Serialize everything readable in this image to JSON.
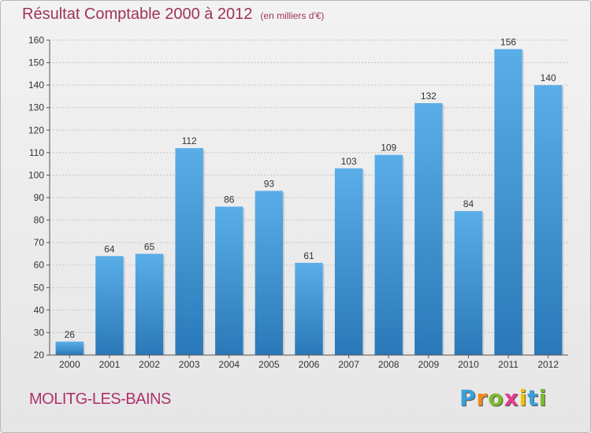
{
  "chart_data": {
    "type": "bar",
    "title": "Résultat Comptable 2000 à 2012",
    "subtitle": "(en milliers d'€)",
    "categories": [
      "2000",
      "2001",
      "2002",
      "2003",
      "2004",
      "2005",
      "2006",
      "2007",
      "2008",
      "2009",
      "2010",
      "2011",
      "2012"
    ],
    "values": [
      26,
      64,
      65,
      112,
      86,
      93,
      61,
      103,
      109,
      132,
      84,
      156,
      140
    ],
    "ylim": [
      20,
      160
    ],
    "yticks": [
      20,
      30,
      40,
      50,
      60,
      70,
      80,
      90,
      100,
      110,
      120,
      130,
      140,
      150,
      160
    ],
    "grid": true,
    "bar_color": "#3d8fd4"
  },
  "town": "MOLITG-LES-BAINS",
  "logo": {
    "letters": [
      "P",
      "r",
      "o",
      "x",
      "i",
      "t",
      "i"
    ],
    "colors": [
      "#3aa0d8",
      "#f08a1c",
      "#7dbb2e",
      "#e63c8c",
      "#f5c400",
      "#3aa0d8",
      "#7dbb2e"
    ]
  }
}
